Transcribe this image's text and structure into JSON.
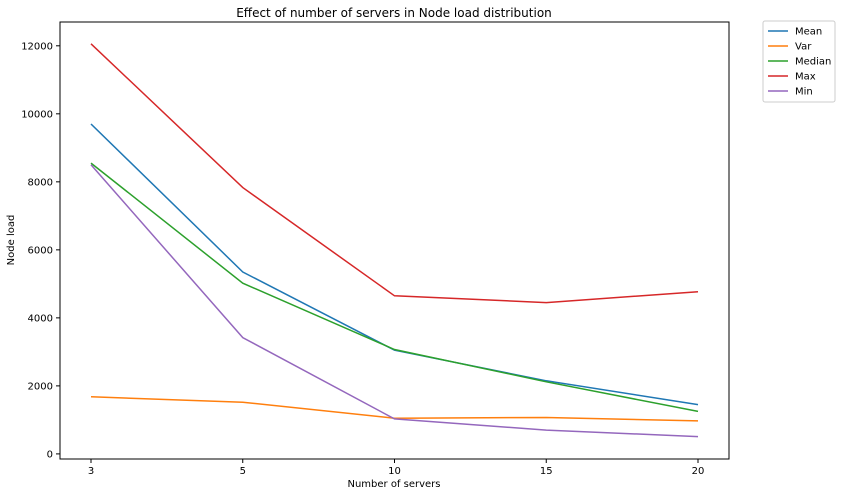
{
  "chart_data": {
    "type": "line",
    "title": "Effect of number of servers in Node load distribution",
    "xlabel": "Number of servers",
    "ylabel": "Node load",
    "categories": [
      "3",
      "5",
      "10",
      "15",
      "20"
    ],
    "ylim": [
      -150,
      12700
    ],
    "yticks": [
      0,
      2000,
      4000,
      6000,
      8000,
      10000,
      12000
    ],
    "grid": false,
    "legend_position": "outside-top-right",
    "series": [
      {
        "name": "Mean",
        "color": "#1f77b4",
        "values": [
          9700,
          5350,
          3050,
          2150,
          1450
        ]
      },
      {
        "name": "Var",
        "color": "#ff7f0e",
        "values": [
          1680,
          1520,
          1050,
          1070,
          970
        ]
      },
      {
        "name": "Median",
        "color": "#2ca02c",
        "values": [
          8550,
          5020,
          3070,
          2120,
          1250
        ]
      },
      {
        "name": "Max",
        "color": "#d62728",
        "values": [
          12060,
          7830,
          4650,
          4450,
          4770
        ]
      },
      {
        "name": "Min",
        "color": "#9467bd",
        "values": [
          8500,
          3420,
          1030,
          700,
          510
        ]
      }
    ]
  }
}
